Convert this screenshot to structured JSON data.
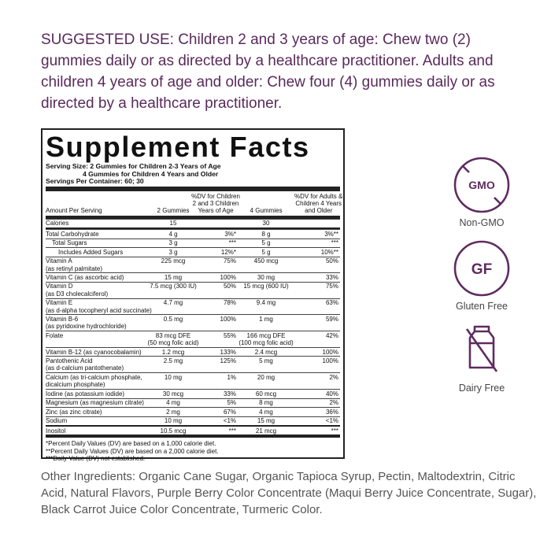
{
  "suggested_use": "SUGGESTED USE: Children 2 and 3 years of age: Chew two (2) gummies daily or as directed by a healthcare practitioner. Adults and children 4 years of age and older: Chew four (4) gummies daily or as directed by a healthcare practitioner.",
  "supplement_facts": {
    "title": "Supplement Facts",
    "serving_size": [
      "Serving Size: 2 Gummies for Children 2-3 Years of Age",
      "4 Gummies for Children 4 Years and Older"
    ],
    "servings_per_container": "Servings Per Container: 60; 30",
    "columns": {
      "name": "Amount Per Serving",
      "amount_2": "2 Gummies",
      "dv_2": [
        "%DV for Children",
        "2 and 3 Children",
        "Years of Age"
      ],
      "amount_4": "4 Gummies",
      "dv_4": [
        "%DV for Adults &",
        "Children 4 Years",
        "and Older"
      ]
    },
    "rows": [
      {
        "name": [
          "Calories"
        ],
        "amount_2": [
          "15"
        ],
        "amount_4": [
          "30"
        ]
      },
      {
        "name": [
          "Total Carbohydrate"
        ],
        "amount_2": [
          "4 g"
        ],
        "dv_2": "3%*",
        "amount_4": [
          "8 g"
        ],
        "dv_4": "3%**",
        "sub_rows": [
          {
            "name": [
              "Total Sugars"
            ],
            "amount_2": [
              "3 g"
            ],
            "dv_2": "***",
            "amount_4": [
              "5 g"
            ],
            "dv_4": "***",
            "sub_rows": [
              {
                "name": [
                  "Includes Added Sugars"
                ],
                "amount_2": [
                  "3 g"
                ],
                "dv_2": "12%*",
                "amount_4": [
                  "5 g"
                ],
                "dv_4": "10%**"
              }
            ]
          }
        ]
      },
      {
        "name": [
          "Vitamin A",
          "(as retinyl palmitate)"
        ],
        "amount_2": [
          "225 mcg"
        ],
        "dv_2": "75%",
        "amount_4": [
          "450 mcg"
        ],
        "dv_4": "50%"
      },
      {
        "name": [
          "Vitamin C (as ascorbic acid)"
        ],
        "amount_2": [
          "15 mg"
        ],
        "dv_2": "100%",
        "amount_4": [
          "30 mg"
        ],
        "dv_4": "33%"
      },
      {
        "name": [
          "Vitamin D",
          "(as D3 cholecalciferol)"
        ],
        "amount_2": [
          "7.5 mcg (300 IU)"
        ],
        "dv_2": "50%",
        "amount_4": [
          "15 mcg (600 IU)"
        ],
        "dv_4": "75%"
      },
      {
        "name": [
          "Vitamin E",
          "(as d-alpha tocopheryl acid succinate)"
        ],
        "amount_2": [
          "4.7 mg"
        ],
        "dv_2": "78%",
        "amount_4": [
          "9.4 mg"
        ],
        "dv_4": "63%"
      },
      {
        "name": [
          "Vitamin B-6",
          "(as pyridoxine hydrochloride)"
        ],
        "amount_2": [
          "0.5 mg"
        ],
        "dv_2": "100%",
        "amount_4": [
          "1 mg"
        ],
        "dv_4": "59%"
      },
      {
        "name": [
          "Folate"
        ],
        "amount_2": [
          "83 mcg DFE",
          "(50 mcg folic acid)"
        ],
        "dv_2": "55%",
        "amount_4": [
          "166 mcg DFE",
          "(100 mcg folic acid)"
        ],
        "dv_4": "42%"
      },
      {
        "name": [
          "Vitamin B-12 (as cyanocobalamin)"
        ],
        "amount_2": [
          "1.2 mcg"
        ],
        "dv_2": "133%",
        "amount_4": [
          "2.4 mcg"
        ],
        "dv_4": "100%"
      },
      {
        "name": [
          "Pantothenic Acid",
          "(as d-calcium pantothenate)"
        ],
        "amount_2": [
          "2.5 mg"
        ],
        "dv_2": "125%",
        "amount_4": [
          "5 mg"
        ],
        "dv_4": "100%"
      },
      {
        "name": [
          "Calcium (as tri-calcium phosphate,",
          "dicalcium phosphate)"
        ],
        "amount_2": [
          "10 mg"
        ],
        "dv_2": "1%",
        "amount_4": [
          "20 mg"
        ],
        "dv_4": "2%"
      },
      {
        "name": [
          "Iodine (as potassium iodide)"
        ],
        "amount_2": [
          "30 mcg"
        ],
        "dv_2": "33%",
        "amount_4": [
          "60 mcg"
        ],
        "dv_4": "40%"
      },
      {
        "name": [
          "Magnesium (as magnesium citrate)"
        ],
        "amount_2": [
          "4 mg"
        ],
        "dv_2": "5%",
        "amount_4": [
          "8 mg"
        ],
        "dv_4": "2%"
      },
      {
        "name": [
          "Zinc (as zinc citrate)"
        ],
        "amount_2": [
          "2 mg"
        ],
        "dv_2": "67%",
        "amount_4": [
          "4 mg"
        ],
        "dv_4": "36%"
      },
      {
        "name": [
          "Sodium"
        ],
        "amount_2": [
          "10 mg"
        ],
        "dv_2": "<1%",
        "amount_4": [
          "15 mg"
        ],
        "dv_4": "<1%"
      },
      {
        "name": [
          "Inositol"
        ],
        "amount_2": [
          "10.5 mcg"
        ],
        "dv_2": "***",
        "amount_4": [
          "21 mcg"
        ],
        "dv_4": "***"
      }
    ],
    "footnotes": [
      "*Percent Daily Values (DV) are based on a 1,000 calorie diet.",
      "**Percent Daily Values (DV) are based on a 2,000 calorie diet.",
      "***Daily Value (DV) not established."
    ]
  },
  "badges": [
    {
      "icon": "GMO",
      "label": "Non-GMO"
    },
    {
      "icon": "GF",
      "label": "Gluten Free"
    },
    {
      "label": "Dairy Free"
    }
  ],
  "other_ingredients": "Other Ingredients: Organic Cane Sugar, Organic Tapioca Syrup, Pectin, Maltodextrin, Citric Acid, Natural Flavors, Purple Berry Color Concentrate (Maqui Berry Juice Concentrate, Sugar), Black Carrot Juice Color Concentrate, Turmeric Color."
}
